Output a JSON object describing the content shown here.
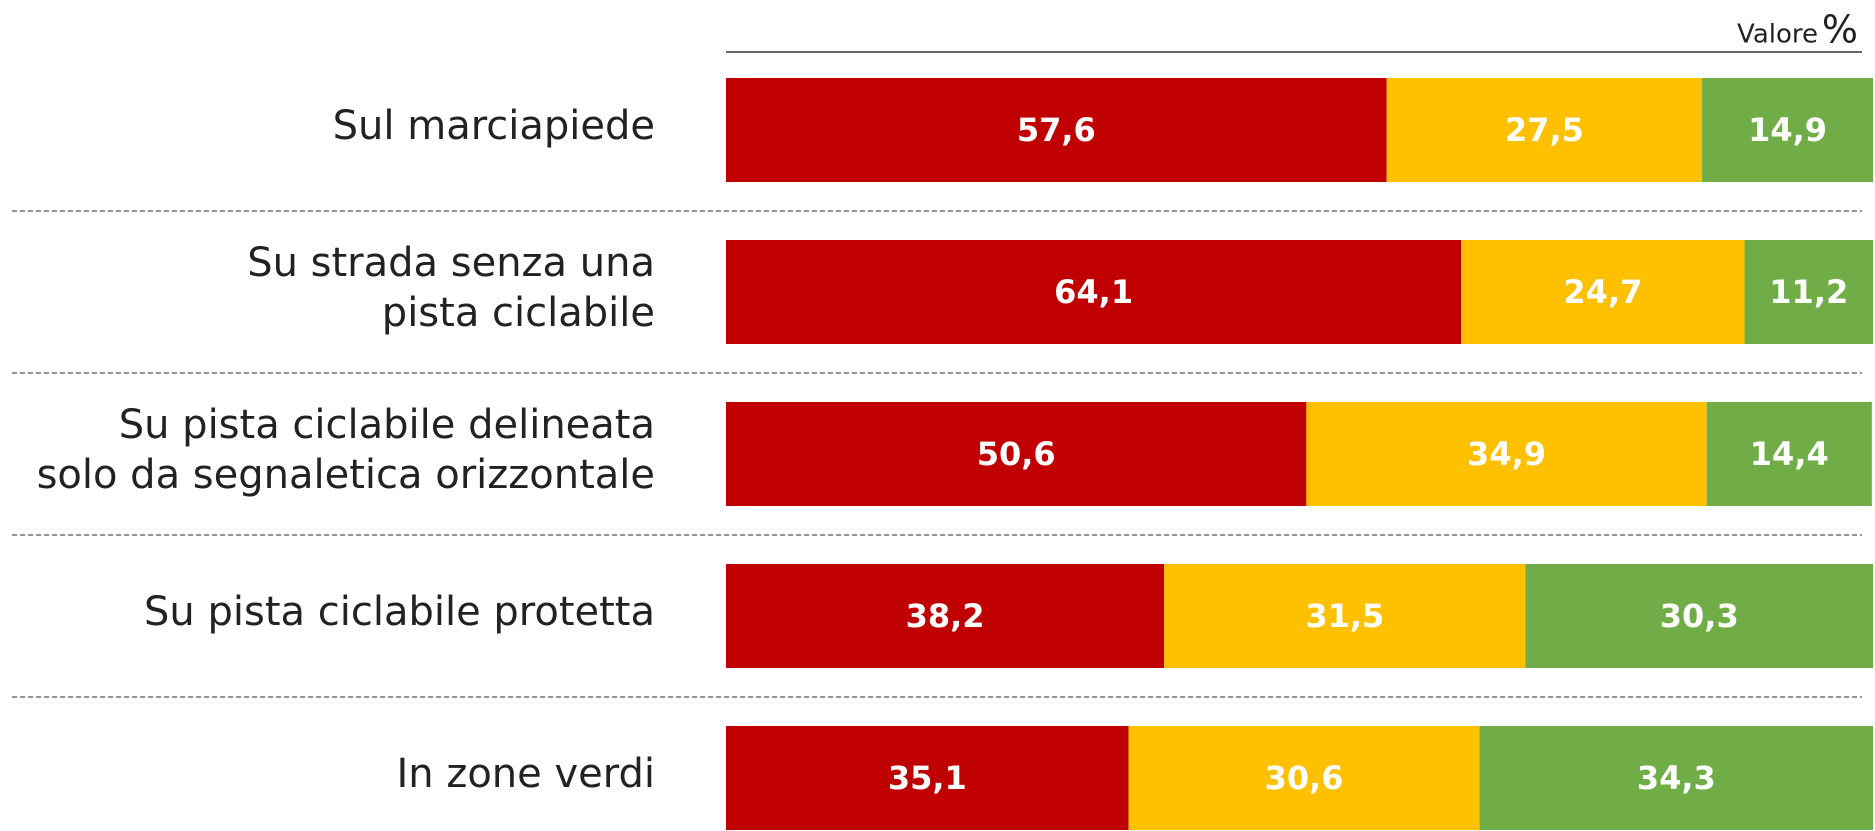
{
  "chart_data": {
    "type": "stacked-bar-horizontal",
    "unit_caption": "Valore",
    "unit": "%",
    "categories": [
      [
        "Sul marciapiede"
      ],
      [
        "Su strada senza una",
        "pista ciclabile"
      ],
      [
        "Su pista ciclabile delineata",
        "solo da segnaletica orizzontale"
      ],
      [
        "Su pista ciclabile protetta"
      ],
      [
        "In zone verdi"
      ]
    ],
    "series": [
      {
        "color": "#c00000",
        "values": [
          57.6,
          64.1,
          50.6,
          38.2,
          35.1
        ],
        "value_labels": [
          "57,6",
          "64,1",
          "50,6",
          "38,2",
          "35,1"
        ]
      },
      {
        "color": "#ffc000",
        "values": [
          27.5,
          24.7,
          34.9,
          31.5,
          30.6
        ],
        "value_labels": [
          "27,5",
          "24,7",
          "34,9",
          "31,5",
          "30,6"
        ]
      },
      {
        "color": "#70ad47",
        "values": [
          14.9,
          11.2,
          14.4,
          30.3,
          34.3
        ],
        "value_labels": [
          "14,9",
          "11,2",
          "14,4",
          "30,3",
          "34,3"
        ]
      }
    ],
    "xlim": [
      0,
      100
    ]
  }
}
